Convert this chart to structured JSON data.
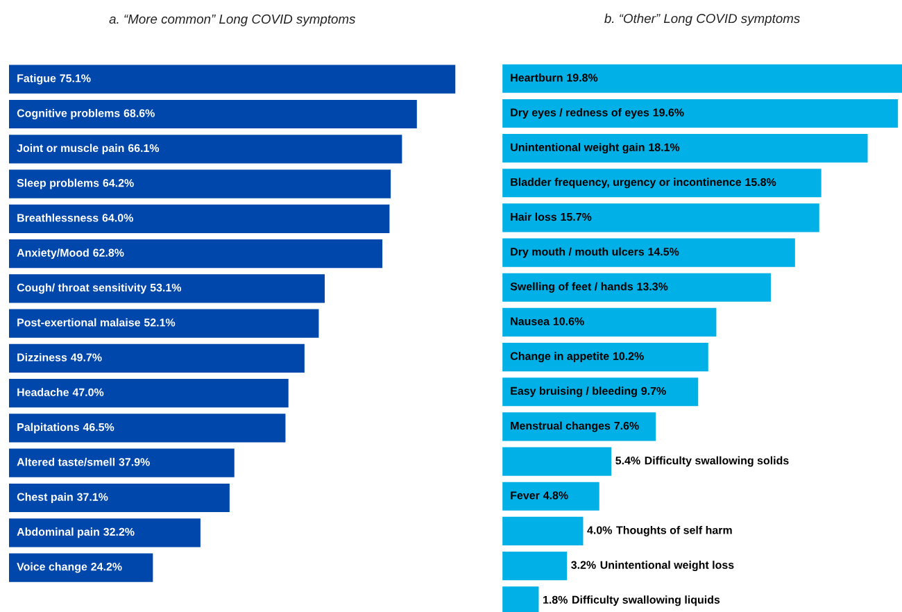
{
  "chart_data": [
    {
      "type": "bar",
      "orientation": "horizontal",
      "title": "a. “More common” Long COVID symptoms",
      "color": "#0047ab",
      "categories": [
        "Fatigue",
        "Cognitive problems",
        "Joint or muscle pain",
        "Sleep problems",
        "Breathlessness",
        "Anxiety/Mood",
        "Cough/ throat sensitivity",
        "Post-exertional malaise",
        "Dizziness",
        "Headache",
        "Palpitations",
        "Altered taste/smell",
        "Chest pain",
        "Abdominal pain",
        "Voice change"
      ],
      "values": [
        75.1,
        68.6,
        66.1,
        64.2,
        64.0,
        62.8,
        53.1,
        52.1,
        49.7,
        47.0,
        46.5,
        37.9,
        37.1,
        32.2,
        24.2
      ],
      "value_labels": [
        "75.1%",
        "68.6%",
        "66.1%",
        "64.2%",
        "64.0%",
        "62.8%",
        "53.1%",
        "52.1%",
        "49.7%",
        "47.0%",
        "46.5%",
        "37.9%",
        "37.1%",
        "32.2%",
        "24.2%"
      ]
    },
    {
      "type": "bar",
      "orientation": "horizontal",
      "title": "b. “Other” Long COVID symptoms",
      "color": "#00b0e6",
      "categories": [
        "Heartburn",
        "Dry eyes / redness of eyes",
        "Unintentional weight gain",
        "Bladder frequency, urgency or incontinence",
        "Hair loss",
        "Dry mouth / mouth ulcers",
        "Swelling of feet / hands",
        "Nausea",
        "Change in appetite",
        "Easy bruising / bleeding",
        "Menstrual changes",
        "Difficulty swallowing solids",
        "Fever",
        "Thoughts of self harm",
        "Unintentional weight loss",
        "Difficulty swallowing liquids"
      ],
      "values": [
        19.8,
        19.6,
        18.1,
        15.8,
        15.7,
        14.5,
        13.3,
        10.6,
        10.2,
        9.7,
        7.6,
        5.4,
        4.8,
        4.0,
        3.2,
        1.8
      ],
      "value_labels": [
        "19.8%",
        "19.6%",
        "18.1%",
        "15.8%",
        "15.7%",
        "14.5%",
        "13.3%",
        "10.6%",
        "10.2%",
        "9.7%",
        "7.6%",
        "5.4%",
        "4.8%",
        "4.0%",
        "3.2%",
        "1.8%"
      ]
    }
  ]
}
